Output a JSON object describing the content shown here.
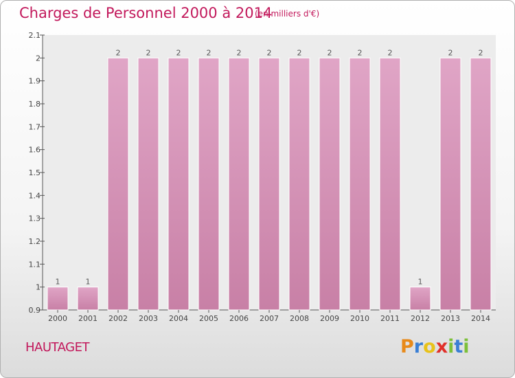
{
  "title": "Charges de Personnel 2000 à 2014",
  "subtitle": "(en milliers d'€)",
  "commune": "HAUTAGET",
  "brand": {
    "letters": [
      "P",
      "r",
      "o",
      "x",
      "i",
      "t",
      "i"
    ],
    "colors": [
      "#e88a1a",
      "#3a7fd5",
      "#e8c21a",
      "#e0302a",
      "#7cc03a",
      "#3a7fd5",
      "#7cc03a"
    ]
  },
  "colors": {
    "bar": "#c880a6",
    "bar_light": "#e0a5c6",
    "text": "#c2185b",
    "axis": "#555555"
  },
  "chart_data": {
    "type": "bar",
    "categories": [
      "2000",
      "2001",
      "2002",
      "2003",
      "2004",
      "2005",
      "2006",
      "2007",
      "2008",
      "2009",
      "2010",
      "2011",
      "2012",
      "2013",
      "2014"
    ],
    "values": [
      1,
      1,
      2,
      2,
      2,
      2,
      2,
      2,
      2,
      2,
      2,
      2,
      1,
      2,
      2
    ],
    "data_labels": [
      "1",
      "1",
      "2",
      "2",
      "2",
      "2",
      "2",
      "2",
      "2",
      "2",
      "2",
      "2",
      "1",
      "2",
      "2"
    ],
    "title": "Charges de Personnel 2000 à 2014",
    "subtitle": "(en milliers d'€)",
    "ylim": [
      0.9,
      2.1
    ],
    "yticks": [
      0.9,
      1,
      1.1,
      1.2,
      1.3,
      1.4,
      1.5,
      1.6,
      1.7,
      1.8,
      1.9,
      2,
      2.1
    ],
    "ytick_labels": [
      "0.9",
      "1",
      "1.1",
      "1.2",
      "1.3",
      "1.4",
      "1.5",
      "1.6",
      "1.7",
      "1.8",
      "1.9",
      "2",
      "2.1"
    ],
    "grid": false
  }
}
